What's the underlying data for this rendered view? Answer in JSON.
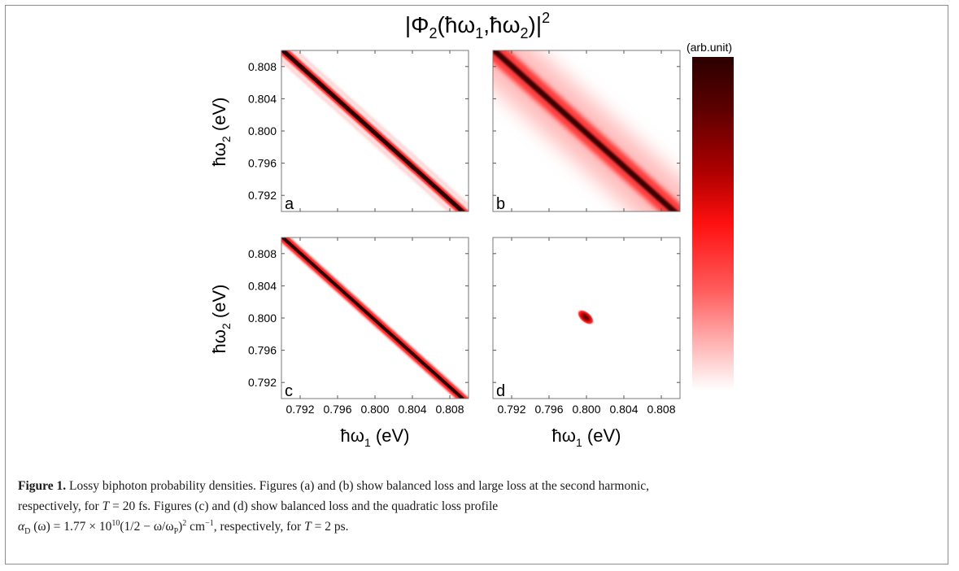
{
  "figure": {
    "title_main": "|Φ",
    "title_sub": "2",
    "title_args": "(ħω",
    "title_args_sub1": "1",
    "title_args_mid": ",ħω",
    "title_args_sub2": "2",
    "title_close": ")|",
    "title_sup": "2",
    "colorbar_label": "(arb.unit)",
    "colors": {
      "peak": "#2b0000",
      "mid": "#ff1a1a",
      "low": "#ffffff",
      "frame": "#8c8c8c"
    }
  },
  "axes": {
    "xlabel_prefix": "ħω",
    "xlabel_sub": "1",
    "xlabel_suffix": " (eV)",
    "ylabel_prefix": "ħω",
    "ylabel_sub": "2",
    "ylabel_suffix": " (eV)"
  },
  "chart_data": [
    {
      "type": "heatmap",
      "panel": "a",
      "x_ticks": [
        "0.792",
        "0.796",
        "0.800",
        "0.804",
        "0.808"
      ],
      "y_ticks": [
        "0.792",
        "0.796",
        "0.800",
        "0.804",
        "0.808"
      ],
      "xlim": [
        0.79,
        0.81
      ],
      "ylim": [
        0.79,
        0.81
      ],
      "pattern": "anti-diagonal band along ħω1+ħω2=1.600 eV, narrow with faint side lobes"
    },
    {
      "type": "heatmap",
      "panel": "b",
      "x_ticks": [
        "0.792",
        "0.796",
        "0.800",
        "0.804",
        "0.808"
      ],
      "y_ticks": [
        "0.792",
        "0.796",
        "0.800",
        "0.804",
        "0.808"
      ],
      "xlim": [
        0.79,
        0.81
      ],
      "ylim": [
        0.79,
        0.81
      ],
      "pattern": "anti-diagonal band along ħω1+ħω2=1.600 eV, broad diffuse tails"
    },
    {
      "type": "heatmap",
      "panel": "c",
      "x_ticks": [
        "0.792",
        "0.796",
        "0.800",
        "0.804",
        "0.808"
      ],
      "y_ticks": [
        "0.792",
        "0.796",
        "0.800",
        "0.804",
        "0.808"
      ],
      "xlim": [
        0.79,
        0.81
      ],
      "ylim": [
        0.79,
        0.81
      ],
      "pattern": "anti-diagonal band along ħω1+ħω2=1.600 eV, narrow"
    },
    {
      "type": "heatmap",
      "panel": "d",
      "x_ticks": [
        "0.792",
        "0.796",
        "0.800",
        "0.804",
        "0.808"
      ],
      "y_ticks": [
        "0.792",
        "0.796",
        "0.800",
        "0.804",
        "0.808"
      ],
      "xlim": [
        0.79,
        0.81
      ],
      "ylim": [
        0.79,
        0.81
      ],
      "pattern": "small localized spot centered at (0.800, 0.800)"
    }
  ],
  "caption": {
    "label": "Figure 1.",
    "line1": " Lossy biphoton probability densities. Figures (a) and (b) show balanced loss and large loss at the second harmonic,",
    "line2_a": "respectively, for ",
    "line2_T": "T",
    "line2_b": " = 20 fs. Figures (c) and (d) show balanced loss and the quadratic loss profile",
    "line3_alpha": "α",
    "line3_D": "D",
    "line3_a": " (ω) = 1.77 × 10",
    "line3_exp": "10",
    "line3_b": "(1/2 − ω/ω",
    "line3_P": "P",
    "line3_c": ")",
    "line3_sq": "2",
    "line3_d": " cm",
    "line3_inv": "−1",
    "line3_e": ", respectively, for ",
    "line3_T": "T",
    "line3_f": " = 2 ps."
  }
}
